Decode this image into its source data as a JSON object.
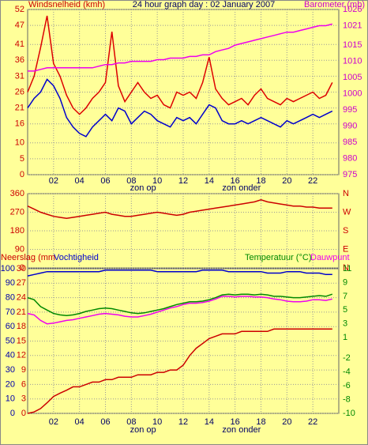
{
  "chart_data": [
    {
      "type": "line",
      "title": "24 hour graph day : 02 January 2007",
      "ylabel": "Windsnelheid (kmh)",
      "y2label": "Barometer (mb)",
      "x": [
        0,
        0.5,
        1,
        1.5,
        2,
        2.5,
        3,
        3.5,
        4,
        4.5,
        5,
        5.5,
        6,
        6.5,
        7,
        7.5,
        8,
        8.5,
        9,
        9.5,
        10,
        10.5,
        11,
        11.5,
        12,
        12.5,
        13,
        13.5,
        14,
        14.5,
        15,
        15.5,
        16,
        16.5,
        17,
        17.5,
        18,
        18.5,
        19,
        19.5,
        20,
        20.5,
        21,
        21.5,
        22,
        22.5,
        23,
        23.5
      ],
      "xlim": [
        0,
        24
      ],
      "xticks": [
        {
          "value": 2,
          "label": "02"
        },
        {
          "value": 4,
          "label": "04"
        },
        {
          "value": 6,
          "label": "06"
        },
        {
          "value": 8,
          "label": "08"
        },
        {
          "value": 10,
          "label": "10"
        },
        {
          "value": 12,
          "label": "12"
        },
        {
          "value": 14,
          "label": "14"
        },
        {
          "value": 16,
          "label": "16"
        },
        {
          "value": 18,
          "label": "18"
        },
        {
          "value": 20,
          "label": "20"
        },
        {
          "value": 22,
          "label": "22"
        }
      ],
      "ylim": [
        0,
        52
      ],
      "yticks": [
        0,
        5,
        10,
        16,
        21,
        26,
        31,
        36,
        41,
        47,
        52
      ],
      "y2lim": [
        975,
        1026
      ],
      "y2ticks": [
        975,
        980,
        985,
        990,
        995,
        1000,
        1005,
        1010,
        1015,
        1021,
        1026
      ],
      "annotations": [
        {
          "text": "zon op",
          "x": 8.9
        },
        {
          "text": "zon onder",
          "x": 16.5
        }
      ],
      "grid": true,
      "series": [
        {
          "color": "#dd0000",
          "axis": "y",
          "values": [
            26,
            31,
            40,
            50,
            35,
            31,
            25,
            21,
            19,
            21,
            24,
            26,
            29,
            45,
            28,
            23,
            26,
            29,
            26,
            24,
            25,
            22,
            21,
            26,
            25,
            26,
            24,
            29,
            37,
            27,
            24,
            22,
            23,
            24,
            22,
            25,
            27,
            24,
            23,
            22,
            24,
            23,
            24,
            25,
            26,
            24,
            25,
            29
          ]
        },
        {
          "color": "#0000cc",
          "axis": "y",
          "values": [
            21,
            24,
            26,
            30,
            28,
            24,
            18,
            15,
            13,
            12,
            15,
            17,
            19,
            17,
            21,
            20,
            16,
            18,
            20,
            19,
            17,
            16,
            15,
            18,
            17,
            18,
            16,
            19,
            22,
            21,
            17,
            16,
            16,
            17,
            16,
            17,
            18,
            17,
            16,
            15,
            17,
            16,
            17,
            18,
            19,
            18,
            19,
            20
          ]
        },
        {
          "color": "#ee00ee",
          "axis": "y2",
          "values": [
            1007,
            1007,
            1007.5,
            1008,
            1008,
            1008,
            1008,
            1008,
            1008,
            1008,
            1008,
            1008.5,
            1009,
            1009,
            1009.5,
            1009.5,
            1010,
            1010,
            1010,
            1010,
            1010.5,
            1010.5,
            1011,
            1011,
            1011,
            1011.5,
            1011.5,
            1012,
            1012,
            1013,
            1013.5,
            1014,
            1015,
            1015.5,
            1016,
            1016.5,
            1017,
            1017.5,
            1018,
            1018.5,
            1019,
            1019,
            1019.5,
            1020,
            1020.5,
            1021,
            1021,
            1021.5
          ]
        }
      ]
    },
    {
      "type": "line",
      "x": [
        0,
        0.5,
        1,
        1.5,
        2,
        2.5,
        3,
        3.5,
        4,
        4.5,
        5,
        5.5,
        6,
        6.5,
        7,
        7.5,
        8,
        8.5,
        9,
        9.5,
        10,
        10.5,
        11,
        11.5,
        12,
        12.5,
        13,
        13.5,
        14,
        14.5,
        15,
        15.5,
        16,
        16.5,
        17,
        17.5,
        18,
        18.5,
        19,
        19.5,
        20,
        20.5,
        21,
        21.5,
        22,
        22.5,
        23,
        23.5
      ],
      "xlim": [
        0,
        24
      ],
      "xticks": [
        {
          "value": 2,
          "label": "02"
        },
        {
          "value": 4,
          "label": "04"
        },
        {
          "value": 6,
          "label": "06"
        },
        {
          "value": 8,
          "label": "08"
        },
        {
          "value": 10,
          "label": "10"
        },
        {
          "value": 12,
          "label": "12"
        },
        {
          "value": 14,
          "label": "14"
        },
        {
          "value": 16,
          "label": "16"
        },
        {
          "value": 18,
          "label": "18"
        },
        {
          "value": 20,
          "label": "20"
        },
        {
          "value": 22,
          "label": "22"
        }
      ],
      "ylim": [
        0,
        360
      ],
      "yticks": [
        0,
        90,
        180,
        270,
        360
      ],
      "y2lim": [
        0,
        360
      ],
      "y2ticks": [
        {
          "value": 0,
          "label": "N"
        },
        {
          "value": 90,
          "label": "E"
        },
        {
          "value": 180,
          "label": "S"
        },
        {
          "value": 270,
          "label": "W"
        },
        {
          "value": 360,
          "label": "N"
        }
      ],
      "grid": true,
      "series": [
        {
          "color": "#cc0000",
          "axis": "y",
          "values": [
            300,
            285,
            270,
            260,
            250,
            245,
            240,
            245,
            250,
            255,
            260,
            265,
            270,
            260,
            255,
            250,
            250,
            255,
            260,
            265,
            270,
            265,
            260,
            255,
            260,
            270,
            275,
            280,
            285,
            290,
            295,
            300,
            305,
            310,
            315,
            320,
            330,
            320,
            315,
            310,
            305,
            300,
            300,
            295,
            295,
            290,
            290,
            290
          ]
        }
      ]
    },
    {
      "type": "line",
      "x": [
        0,
        0.5,
        1,
        1.5,
        2,
        2.5,
        3,
        3.5,
        4,
        4.5,
        5,
        5.5,
        6,
        6.5,
        7,
        7.5,
        8,
        8.5,
        9,
        9.5,
        10,
        10.5,
        11,
        11.5,
        12,
        12.5,
        13,
        13.5,
        14,
        14.5,
        15,
        15.5,
        16,
        16.5,
        17,
        17.5,
        18,
        18.5,
        19,
        19.5,
        20,
        20.5,
        21,
        21.5,
        22,
        22.5,
        23,
        23.5
      ],
      "xlim": [
        0,
        24
      ],
      "xticks": [
        {
          "value": 2,
          "label": "02"
        },
        {
          "value": 4,
          "label": "04"
        },
        {
          "value": 6,
          "label": "06"
        },
        {
          "value": 8,
          "label": "08"
        },
        {
          "value": 10,
          "label": "10"
        },
        {
          "value": 12,
          "label": "12"
        },
        {
          "value": 14,
          "label": "14"
        },
        {
          "value": 16,
          "label": "16"
        },
        {
          "value": 18,
          "label": "18"
        },
        {
          "value": 20,
          "label": "20"
        },
        {
          "value": 22,
          "label": "22"
        }
      ],
      "ylim": [
        0,
        100
      ],
      "yticks": [
        0,
        10,
        20,
        30,
        40,
        50,
        60,
        70,
        80,
        90,
        100
      ],
      "y3lim": [
        0,
        30
      ],
      "y3ticks": [
        0,
        3,
        6,
        9,
        12,
        15,
        18,
        21,
        24,
        27,
        30
      ],
      "y2lim": [
        -10,
        11
      ],
      "y2ticks": [
        -10,
        -8,
        -6,
        -4,
        -2,
        1,
        3,
        5,
        7,
        9,
        11
      ],
      "annotations": [
        {
          "text": "zon op",
          "x": 8.9
        },
        {
          "text": "zon onder",
          "x": 16.5
        }
      ],
      "grid": true,
      "series": [
        {
          "name": "Neerslag (mm",
          "color": "#cc0000",
          "axis": "y3",
          "values": [
            0,
            0.3,
            1,
            2.2,
            3.5,
            4.2,
            4.8,
            5.5,
            5.5,
            6,
            6.5,
            6.5,
            7,
            7,
            7.5,
            7.5,
            7.5,
            8,
            8,
            8,
            8.5,
            8.5,
            9,
            9,
            10,
            12,
            13.5,
            14.5,
            15.5,
            16,
            16.5,
            16.5,
            16.5,
            17,
            17,
            17,
            17,
            17,
            17.5,
            17.5,
            17.5,
            17.5,
            17.5,
            17.5,
            17.5,
            17.5,
            17.5,
            17.5
          ]
        },
        {
          "name": "Vochtigheid",
          "color": "#0000cc",
          "axis": "y",
          "values": [
            95,
            96,
            97,
            98,
            98,
            98,
            98,
            98,
            98,
            98,
            98,
            98,
            99,
            99,
            99,
            99,
            99,
            99,
            99,
            99,
            98,
            98,
            98,
            98,
            98,
            98,
            98,
            99,
            99,
            99,
            99,
            98,
            98,
            98,
            98,
            98,
            98,
            97,
            97,
            97,
            98,
            98,
            98,
            97,
            97,
            97,
            96,
            96
          ]
        },
        {
          "name": "Temperatuur (°C)",
          "color": "#008800",
          "axis": "y2",
          "values": [
            6.8,
            6.5,
            5.5,
            5,
            4.5,
            4.3,
            4.2,
            4.3,
            4.5,
            4.8,
            5,
            5.2,
            5.3,
            5.2,
            5,
            4.8,
            4.6,
            4.5,
            4.6,
            4.8,
            5,
            5.2,
            5.5,
            5.8,
            6,
            6.2,
            6.2,
            6.3,
            6.5,
            6.8,
            7.2,
            7.3,
            7.2,
            7.3,
            7.3,
            7.2,
            7.3,
            7.2,
            7,
            7,
            6.9,
            6.8,
            6.8,
            6.9,
            7,
            7.1,
            7,
            7.3
          ]
        },
        {
          "name": "Dauwpunt",
          "color": "#ee00ee",
          "axis": "y2",
          "values": [
            4.5,
            4.3,
            3.5,
            3,
            3.1,
            3.3,
            3.5,
            3.6,
            3.8,
            4,
            4.2,
            4.4,
            4.5,
            4.4,
            4.3,
            4.1,
            4,
            4,
            4.2,
            4.4,
            4.7,
            5,
            5.3,
            5.5,
            5.8,
            6,
            6,
            6.1,
            6.3,
            6.6,
            7,
            7,
            6.9,
            7,
            7,
            6.9,
            6.9,
            6.8,
            6.6,
            6.5,
            6.3,
            6.2,
            6.2,
            6.3,
            6.5,
            6.5,
            6.4,
            6.6
          ]
        }
      ]
    }
  ]
}
